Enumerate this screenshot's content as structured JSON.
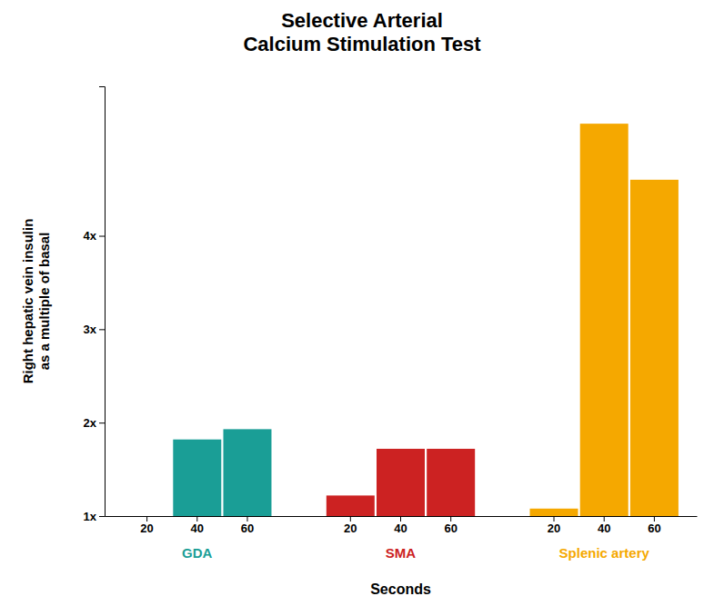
{
  "chart_data": {
    "type": "bar",
    "title": "Selective Arterial\nCalcium Stimulation Test",
    "xlabel": "Seconds",
    "ylabel": "Right hepatic vein insulin\nas a multiple of basal",
    "categories": [
      "20",
      "40",
      "60"
    ],
    "series": [
      {
        "name": "GDA",
        "color": "#1a9e96",
        "values": [
          1.0,
          1.82,
          1.93
        ]
      },
      {
        "name": "SMA",
        "color": "#cc2222",
        "values": [
          1.22,
          1.72,
          1.72
        ]
      },
      {
        "name": "Splenic artery",
        "color": "#f5a800",
        "values": [
          1.08,
          5.2,
          4.6
        ]
      }
    ],
    "ylim": [
      1.0,
      5.6
    ],
    "yticks": [
      {
        "value": 1,
        "label": "1x"
      },
      {
        "value": 2,
        "label": "2x"
      },
      {
        "value": 3,
        "label": "3x"
      },
      {
        "value": 4,
        "label": "4x"
      }
    ],
    "grid": false
  }
}
